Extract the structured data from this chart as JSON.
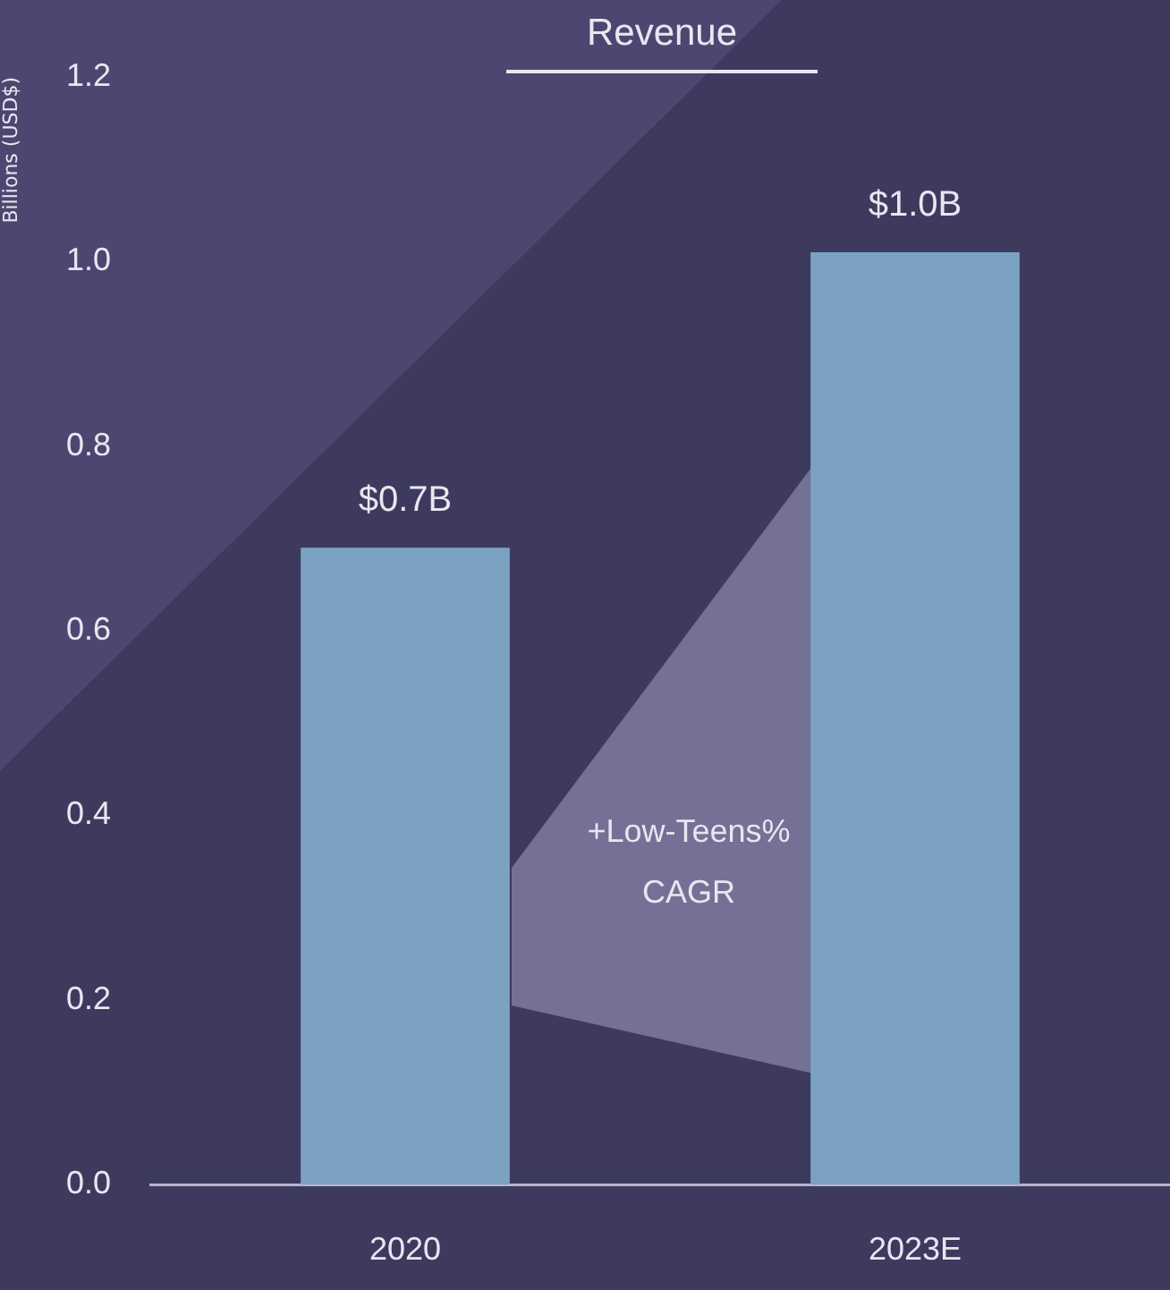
{
  "chart_data": {
    "type": "bar",
    "title": "Revenue",
    "ylabel": "Billions (USD$)",
    "categories": [
      "2020",
      "2023E"
    ],
    "series": [
      {
        "color": "#7ba2c2",
        "values": [
          0.69,
          1.01
        ],
        "value_labels": [
          "$0.7B",
          "$1.0B"
        ]
      }
    ],
    "ylim": [
      0,
      1.2
    ],
    "yticks": [
      {
        "value": 0,
        "label": "0.0"
      },
      {
        "value": 0.2,
        "label": "0.2"
      },
      {
        "value": 0.4,
        "label": "0.4"
      },
      {
        "value": 0.6,
        "label": "0.6"
      },
      {
        "value": 0.8,
        "label": "0.8"
      },
      {
        "value": 1,
        "label": "1.0"
      },
      {
        "value": 1.2,
        "label": "1.2"
      }
    ],
    "annotations": [
      "+Low-Teens% CAGR"
    ],
    "grid": false,
    "legend": false
  }
}
